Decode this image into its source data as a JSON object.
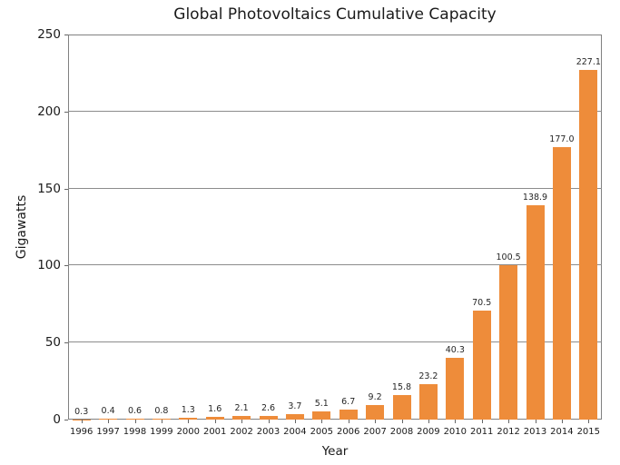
{
  "chart_data": {
    "type": "bar",
    "title": "Global Photovoltaics Cumulative Capacity",
    "xlabel": "Year",
    "ylabel": "Gigawatts",
    "categories": [
      "1996",
      "1997",
      "1998",
      "1999",
      "2000",
      "2001",
      "2002",
      "2003",
      "2004",
      "2005",
      "2006",
      "2007",
      "2008",
      "2009",
      "2010",
      "2011",
      "2012",
      "2013",
      "2014",
      "2015"
    ],
    "values": [
      0.3,
      0.4,
      0.6,
      0.8,
      1.3,
      1.6,
      2.1,
      2.6,
      3.7,
      5.1,
      6.7,
      9.2,
      15.8,
      23.2,
      40.3,
      70.5,
      100.5,
      138.9,
      177.0,
      227.1
    ],
    "bar_labels": [
      "0.3",
      "0.4",
      "0.6",
      "0.8",
      "1.3",
      "1.6",
      "2.1",
      "2.6",
      "3.7",
      "5.1",
      "6.7",
      "9.2",
      "15.8",
      "23.2",
      "40.3",
      "70.5",
      "100.5",
      "138.9",
      "177.0",
      "227.1"
    ],
    "ylim": [
      0,
      250
    ],
    "yticks": [
      0,
      50,
      100,
      150,
      200,
      250
    ],
    "grid": "horizontal",
    "legend": "none",
    "colors": {
      "bar": "#EE8C3A",
      "grid": "#8C8C8C",
      "frame": "#808080",
      "text": "#1A1A1A"
    }
  }
}
